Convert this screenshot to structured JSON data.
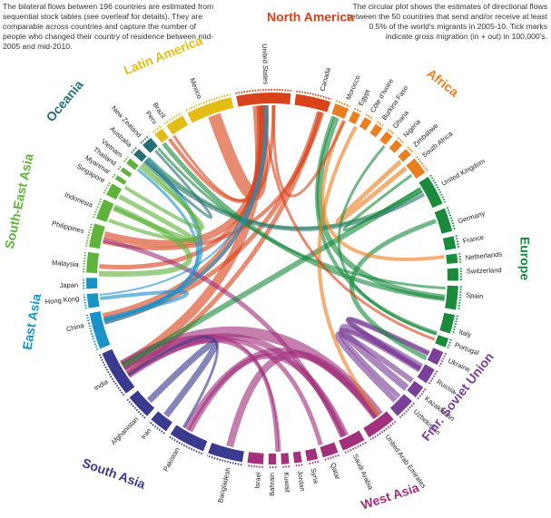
{
  "notes": {
    "left": "The bilateral flows between 196 countries are estimated from sequential stock tables (see overleaf for details). They are comparable across countries and capture the number of people who changed their country of residence between mid-2005 and mid-2010.",
    "right": "The circular plot shows the estimates of directional flows between the 50 countries that send and/or receive at least 0.5% of the world's migrants in 2005-10. Tick marks indicate gross migration (in + out) in 100,000's."
  },
  "regions": [
    {
      "name": "North America",
      "color": "#d8431c",
      "countries": [
        "United States",
        "Canada"
      ]
    },
    {
      "name": "Africa",
      "color": "#ea7f22",
      "countries": [
        "Morocco",
        "Egypt",
        "Côte d'Ivoire",
        "Burkina Faso",
        "Ghana",
        "Nigeria",
        "Zimbabwe",
        "South Africa"
      ]
    },
    {
      "name": "Europe",
      "color": "#1a8a3d",
      "countries": [
        "United Kingdom",
        "Germany",
        "France",
        "Netherlands",
        "Switzerland",
        "Spain",
        "Italy",
        "Portugal"
      ]
    },
    {
      "name": "Fmr. Soviet Union",
      "color": "#7a3f98",
      "countries": [
        "Ukraine",
        "Russia",
        "Kazakhstan",
        "Uzbekistan"
      ]
    },
    {
      "name": "West Asia",
      "color": "#a2307c",
      "countries": [
        "United Arab Emirates",
        "Saudi Arabia",
        "Qatar",
        "Syria",
        "Jordan",
        "Kuwait",
        "Bahrain",
        "Israel"
      ]
    },
    {
      "name": "South Asia",
      "color": "#3a3a8e",
      "countries": [
        "Bangladesh",
        "Pakistan",
        "Iran",
        "Afghanistan",
        "India"
      ]
    },
    {
      "name": "East Asia",
      "color": "#1a93c9",
      "countries": [
        "China",
        "Hong Kong",
        "Japan"
      ]
    },
    {
      "name": "South-East Asia",
      "color": "#5fb33b",
      "countries": [
        "Malaysia",
        "Philippines",
        "Indonesia",
        "Singapore",
        "Myanmar",
        "Thailand",
        "Vietnam"
      ]
    },
    {
      "name": "Oceania",
      "color": "#266f74",
      "countries": [
        "Australia",
        "New Zealand"
      ]
    },
    {
      "name": "Latin America",
      "color": "#e4bd14",
      "countries": [
        "Peru",
        "Brazil",
        "Mexico"
      ]
    }
  ]
}
